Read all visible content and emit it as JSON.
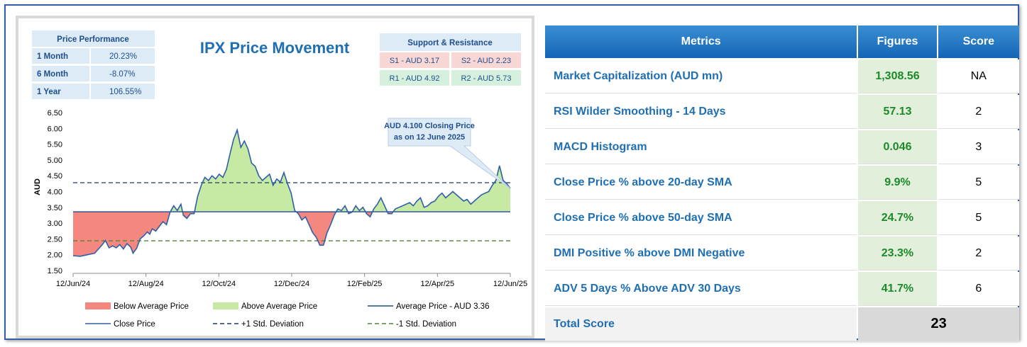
{
  "chart_data": {
    "type": "area",
    "title": "IPX Price Movement",
    "ylabel": "AUD",
    "xlabel": "",
    "ylim": [
      1.5,
      6.5
    ],
    "yticks": [
      "6.50",
      "6.00",
      "5.50",
      "5.00",
      "4.50",
      "4.00",
      "3.50",
      "3.00",
      "2.50",
      "2.00",
      "1.50"
    ],
    "xticks": [
      "12/Jun/24",
      "12/Aug/24",
      "12/Oct/24",
      "12/Dec/24",
      "12/Feb/25",
      "12/Apr/25",
      "12/Jun/25"
    ],
    "grid": false,
    "average_price": 3.36,
    "plus_1_std": 4.28,
    "minus_1_std": 2.44,
    "series": [
      {
        "name": "Close Price",
        "x": [
          0,
          6,
          12,
          18,
          24,
          27,
          30,
          33,
          36,
          39,
          42,
          45,
          48,
          50,
          53,
          56,
          59,
          62,
          64,
          66,
          69,
          72,
          75,
          78,
          81,
          84,
          87,
          90,
          92,
          95,
          98,
          101,
          104,
          107,
          110,
          113,
          116,
          119,
          122,
          125,
          128,
          131,
          134,
          137,
          140,
          143,
          146,
          149,
          152,
          155,
          158,
          161,
          164,
          167,
          170,
          173,
          176,
          179,
          182,
          185,
          188,
          191,
          194,
          197,
          200,
          203,
          206,
          209,
          212,
          215,
          218,
          221,
          224,
          227,
          230,
          233,
          236,
          239,
          242,
          245,
          248,
          251,
          254,
          257,
          260,
          263,
          266,
          269,
          272,
          275,
          278,
          281,
          284,
          287,
          290,
          293,
          296,
          299,
          302,
          305,
          308,
          311,
          314,
          317,
          320,
          323,
          326,
          329,
          332,
          335,
          338,
          341,
          344,
          347,
          350,
          353,
          356,
          359,
          362,
          365
        ],
        "values": [
          1.97,
          1.95,
          2.0,
          2.05,
          2.3,
          2.45,
          2.22,
          2.28,
          2.22,
          2.32,
          2.18,
          2.35,
          2.25,
          2.05,
          2.2,
          2.5,
          2.6,
          2.72,
          2.65,
          2.82,
          2.75,
          2.9,
          3.05,
          2.95,
          3.35,
          3.55,
          3.4,
          3.6,
          3.25,
          3.15,
          3.3,
          3.3,
          3.85,
          4.2,
          4.45,
          4.35,
          4.5,
          4.4,
          4.55,
          4.45,
          4.7,
          5.2,
          5.65,
          5.95,
          5.4,
          5.6,
          5.35,
          4.9,
          4.8,
          4.5,
          4.35,
          4.45,
          4.55,
          4.2,
          4.4,
          4.3,
          4.6,
          4.25,
          3.95,
          3.4,
          3.3,
          3.1,
          3.2,
          2.95,
          2.7,
          2.55,
          2.3,
          2.3,
          2.7,
          2.95,
          3.25,
          3.45,
          3.4,
          3.55,
          3.3,
          3.35,
          3.55,
          3.4,
          3.5,
          3.3,
          3.2,
          3.45,
          3.6,
          3.8,
          3.55,
          3.3,
          3.3,
          3.45,
          3.5,
          3.55,
          3.6,
          3.65,
          3.55,
          3.7,
          3.8,
          3.5,
          3.55,
          3.65,
          3.7,
          3.85,
          3.95,
          3.8,
          3.9,
          4.0,
          3.9,
          3.8,
          3.7,
          3.75,
          3.6,
          3.7,
          3.8,
          3.9,
          3.95,
          4.0,
          4.2,
          4.35,
          4.82,
          4.35,
          4.25,
          4.1
        ]
      }
    ],
    "legend": [
      {
        "label": "Below Average Price",
        "kind": "fill",
        "color": "#f4877f"
      },
      {
        "label": "Above Average Price",
        "kind": "fill",
        "color": "#c6e9a4"
      },
      {
        "label": "Average Price - AUD 3.36",
        "kind": "line",
        "color": "#1f4e8c"
      },
      {
        "label": "Close Price",
        "kind": "line",
        "color": "#2e5fa8"
      },
      {
        "label": "+1 Std. Deviation",
        "kind": "dash",
        "color": "#1f3864"
      },
      {
        "label": "-1 Std. Deviation",
        "kind": "dash",
        "color": "#548235"
      }
    ],
    "legend_position": "bottom",
    "annotation": {
      "line1": "AUD 4.100 Closing Price",
      "line2": "as on 12 June 2025",
      "target_x": 365,
      "target_y": 4.1
    }
  },
  "price_performance": {
    "header": "Price Performance",
    "rows": [
      {
        "label": "1 Month",
        "value": "20.23%"
      },
      {
        "label": "6 Month",
        "value": "-8.07%"
      },
      {
        "label": "1 Year",
        "value": "106.55%"
      }
    ]
  },
  "support_resistance": {
    "header": "Support & Resistance",
    "s1": "S1 - AUD 3.17",
    "s2": "S2 - AUD 2.23",
    "r1": "R1 - AUD 4.92",
    "r2": "R2 - AUD 5.73"
  },
  "metrics": {
    "headers": {
      "metric": "Metrics",
      "figure": "Figures",
      "score": "Score"
    },
    "rows": [
      {
        "name": "Market Capitalization (AUD mn)",
        "figure": "1,308.56",
        "score": "NA"
      },
      {
        "name": "RSI Wilder Smoothing - 14 Days",
        "figure": "57.13",
        "score": "2"
      },
      {
        "name": "MACD Histogram",
        "figure": "0.046",
        "score": "3"
      },
      {
        "name": "Close Price % above 20-day SMA",
        "figure": "9.9%",
        "score": "5"
      },
      {
        "name": "Close Price % above 50-day SMA",
        "figure": "24.7%",
        "score": "5"
      },
      {
        "name": "DMI Positive % above DMI Negative",
        "figure": "23.3%",
        "score": "2"
      },
      {
        "name": "ADV 5 Days % Above ADV 30 Days",
        "figure": "41.7%",
        "score": "6"
      }
    ],
    "total_label": "Total Score",
    "total_value": "23"
  },
  "colors": {
    "accent": "#1565b6",
    "positive_text": "#1c8a2a",
    "below_fill": "#f4877f",
    "above_fill": "#c6e9a4",
    "support_bg": "#f8d7d5",
    "resistance_bg": "#d5f1de"
  }
}
